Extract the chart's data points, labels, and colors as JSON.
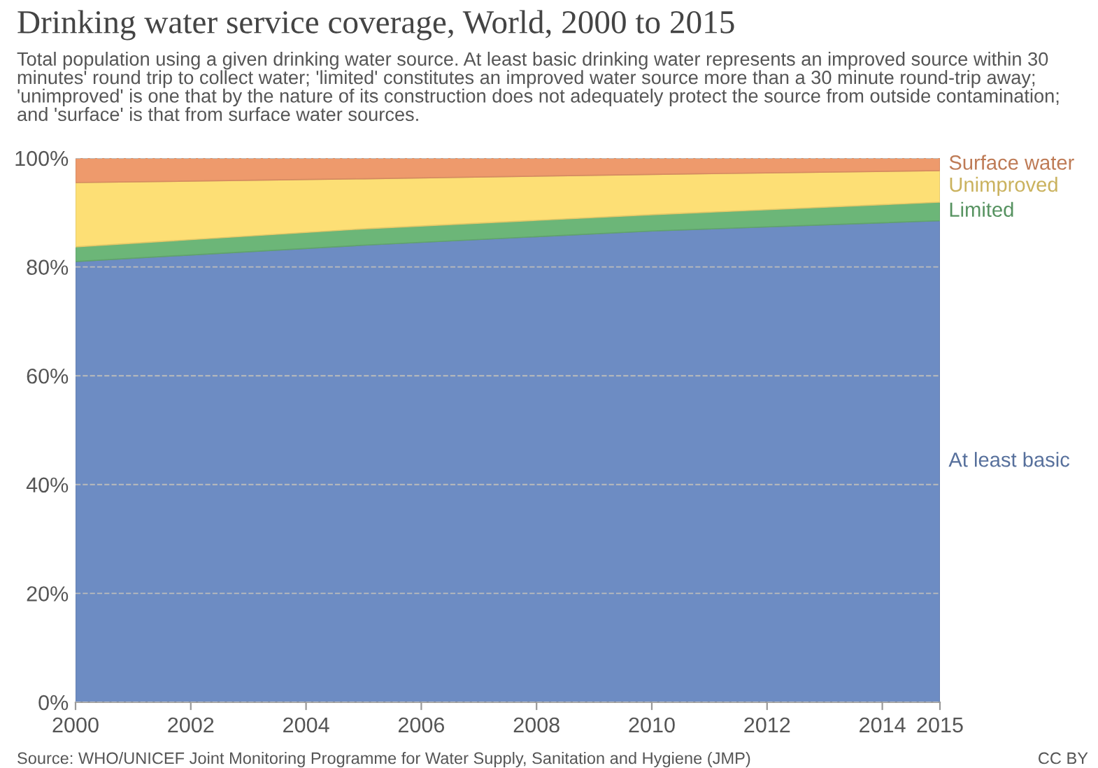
{
  "chart_data": {
    "type": "area",
    "stacked": true,
    "title": "Drinking water service coverage, World, 2000 to 2015",
    "subtitle": "Total population using a given drinking water source. At least basic drinking water represents an improved source within 30 minutes' round trip to collect water; 'limited' constitutes an improved water source more than a 30 minute round-trip away; 'unimproved' is one that by the nature of its construction does not adequately protect the source from outside contamination; and 'surface' is that from surface water sources.",
    "x": [
      2000,
      2005,
      2010,
      2015
    ],
    "series": [
      {
        "name": "At least basic",
        "color": "#6d8cc3",
        "values": [
          81.0,
          84.0,
          86.6,
          88.5
        ]
      },
      {
        "name": "Limited",
        "color": "#6cb678",
        "values": [
          2.7,
          3.0,
          3.0,
          3.4
        ]
      },
      {
        "name": "Unimproved",
        "color": "#fddf75",
        "values": [
          11.8,
          9.2,
          7.4,
          5.8
        ]
      },
      {
        "name": "Surface water",
        "color": "#ee9a6c",
        "values": [
          4.5,
          3.8,
          3.0,
          2.3
        ]
      }
    ],
    "xlim": [
      2000,
      2015
    ],
    "ylim": [
      0,
      100
    ],
    "xticks": [
      2000,
      2002,
      2004,
      2006,
      2008,
      2010,
      2012,
      2014,
      2015
    ],
    "yticks": [
      {
        "value": 0,
        "label": "0%"
      },
      {
        "value": 20,
        "label": "20%"
      },
      {
        "value": 40,
        "label": "40%"
      },
      {
        "value": 60,
        "label": "60%"
      },
      {
        "value": 80,
        "label": "80%"
      },
      {
        "value": 100,
        "label": "100%"
      }
    ],
    "grid": "y",
    "line_style": "dashed",
    "legend": false,
    "annotations": [
      "Source: WHO/UNICEF Joint Monitoring Programme for Water Supply, Sanitation and Hygiene (JMP)",
      "CC BY"
    ]
  }
}
